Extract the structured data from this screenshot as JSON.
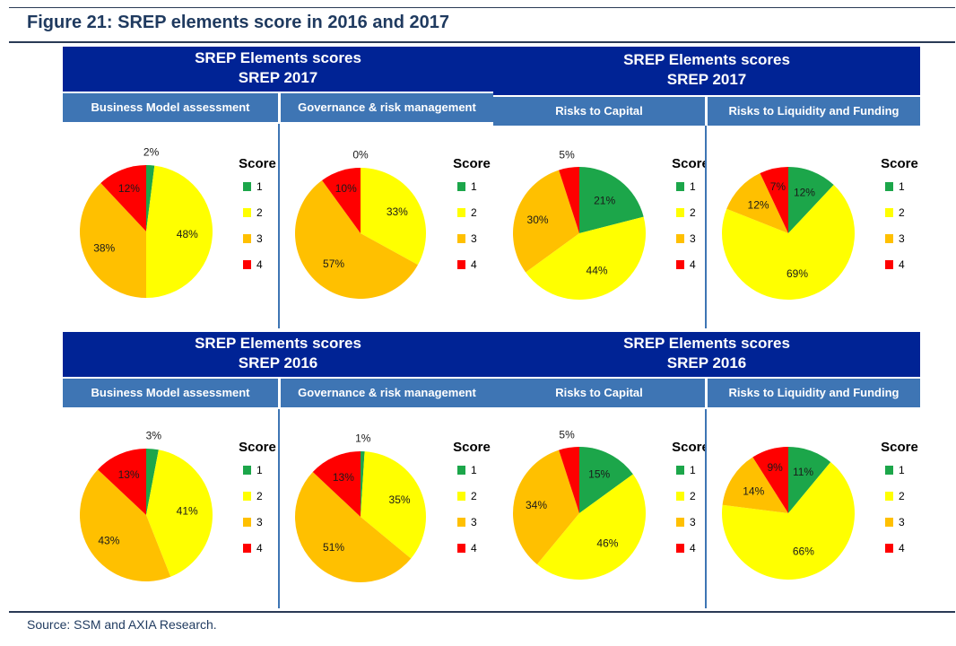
{
  "figure_title": "Figure 21: SREP elements score in 2016 and 2017",
  "source": "Source: SSM and AXIA Research.",
  "banners": {
    "top_left": {
      "line1": "SREP Elements scores",
      "line2": "SREP 2017"
    },
    "top_right": {
      "line1": "SREP Elements scores",
      "line2": "SREP 2017"
    },
    "bot_left": {
      "line1": "SREP Elements scores",
      "line2": "SREP 2016"
    },
    "bot_right": {
      "line1": "SREP Elements scores",
      "line2": "SREP 2016"
    }
  },
  "legend": {
    "title": "Score",
    "labels": [
      "1",
      "2",
      "3",
      "4"
    ],
    "colors": [
      "#1ca64a",
      "#ffff00",
      "#ffc000",
      "#ff0000"
    ]
  },
  "chart_data": [
    {
      "type": "pie",
      "title": "Business Model assessment",
      "year": "2017",
      "categories": [
        "1",
        "2",
        "3",
        "4"
      ],
      "values": [
        2,
        48,
        38,
        12
      ],
      "labels": [
        "2%",
        "48%",
        "38%",
        "12%"
      ]
    },
    {
      "type": "pie",
      "title": "Governance & risk management",
      "year": "2017",
      "categories": [
        "1",
        "2",
        "3",
        "4"
      ],
      "values": [
        0,
        33,
        57,
        10
      ],
      "labels": [
        "0%",
        "33%",
        "57%",
        "10%"
      ]
    },
    {
      "type": "pie",
      "title": "Risks to Capital",
      "year": "2017",
      "categories": [
        "1",
        "2",
        "3",
        "4"
      ],
      "values": [
        21,
        44,
        30,
        5
      ],
      "labels": [
        "21%",
        "44%",
        "30%",
        "5%"
      ]
    },
    {
      "type": "pie",
      "title": "Risks to Liquidity and Funding",
      "year": "2017",
      "categories": [
        "1",
        "2",
        "3",
        "4"
      ],
      "values": [
        12,
        69,
        12,
        7
      ],
      "labels": [
        "12%",
        "69%",
        "12%",
        "7%"
      ]
    },
    {
      "type": "pie",
      "title": "Business Model assessment",
      "year": "2016",
      "categories": [
        "1",
        "2",
        "3",
        "4"
      ],
      "values": [
        3,
        41,
        43,
        13
      ],
      "labels": [
        "3%",
        "41%",
        "43%",
        "13%"
      ]
    },
    {
      "type": "pie",
      "title": "Governance & risk management",
      "year": "2016",
      "categories": [
        "1",
        "2",
        "3",
        "4"
      ],
      "values": [
        1,
        35,
        51,
        13
      ],
      "labels": [
        "1%",
        "35%",
        "51%",
        "13%"
      ]
    },
    {
      "type": "pie",
      "title": "Risks to Capital",
      "year": "2016",
      "categories": [
        "1",
        "2",
        "3",
        "4"
      ],
      "values": [
        15,
        46,
        34,
        5
      ],
      "labels": [
        "15%",
        "46%",
        "34%",
        "5%"
      ]
    },
    {
      "type": "pie",
      "title": "Risks to Liquidity and Funding",
      "year": "2016",
      "categories": [
        "1",
        "2",
        "3",
        "4"
      ],
      "values": [
        11,
        66,
        14,
        9
      ],
      "labels": [
        "11%",
        "66%",
        "14%",
        "9%"
      ]
    }
  ]
}
